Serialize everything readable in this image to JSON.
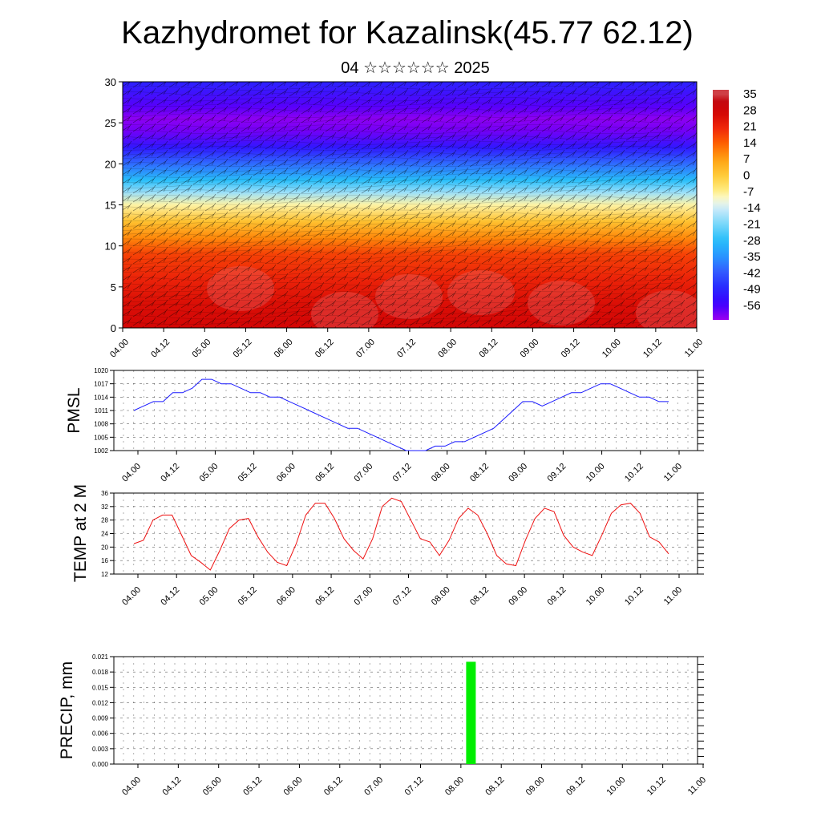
{
  "title": "Kazhydromet for Kazalinsk(45.77 62.12)",
  "subtitle": "04 ☆☆☆☆☆☆ 2025",
  "time_labels": [
    "04.00",
    "04.12",
    "05.00",
    "05.12",
    "06.00",
    "06.12",
    "07.00",
    "07.12",
    "08.00",
    "08.12",
    "09.00",
    "09.12",
    "10.00",
    "10.12",
    "11.00"
  ],
  "colors": {
    "pmsl_line": "#1a1aff",
    "temp_line": "#ee1111",
    "precip_bar": "#00ee00"
  },
  "chart_data": [
    {
      "type": "heatmap",
      "ylim": [
        0,
        30
      ],
      "yticks": [
        0,
        5,
        10,
        15,
        20,
        25,
        30
      ],
      "colorbar_labels": [
        "35",
        "28",
        "21",
        "14",
        "7",
        "0",
        "-7",
        "-14",
        "-21",
        "-28",
        "-35",
        "-42",
        "-49",
        "-56"
      ],
      "colorbar_range": [
        -63,
        38
      ],
      "profile": {
        "height": [
          0,
          3,
          6,
          9,
          11,
          13,
          15,
          16.5,
          18,
          20,
          22,
          24,
          25.5,
          27,
          30
        ],
        "value": [
          28,
          26,
          22,
          18,
          10,
          2,
          -8,
          -18,
          -28,
          -40,
          -52,
          -60,
          -62,
          -58,
          -50
        ]
      },
      "overlay": "wind barbs"
    },
    {
      "type": "line",
      "ylabel": "PMSL",
      "ylim": [
        1002,
        1020
      ],
      "yticks": [
        1002,
        1005,
        1008,
        1011,
        1014,
        1017,
        1020
      ],
      "values": [
        1011,
        1012,
        1013,
        1013,
        1015,
        1015,
        1016,
        1018,
        1018,
        1017,
        1017,
        1016,
        1015,
        1015,
        1014,
        1014,
        1013,
        1012,
        1011,
        1010,
        1009,
        1008,
        1007,
        1007,
        1006,
        1005,
        1004,
        1003,
        1002,
        1002,
        1002,
        1003,
        1003,
        1004,
        1004,
        1005,
        1006,
        1007,
        1009,
        1011,
        1013,
        1013,
        1012,
        1013,
        1014,
        1015,
        1015,
        1016,
        1017,
        1017,
        1016,
        1015,
        1014,
        1014,
        1013,
        1013
      ]
    },
    {
      "type": "line",
      "ylabel": "TEMP at 2 M",
      "ylim": [
        12,
        36
      ],
      "yticks": [
        12,
        16,
        20,
        24,
        28,
        32,
        36
      ],
      "values": [
        21,
        22,
        28,
        29.5,
        29.5,
        23.5,
        17.5,
        15.5,
        13.2,
        19,
        25.5,
        28,
        28.5,
        23,
        18.5,
        15.5,
        14.5,
        21,
        29.5,
        33,
        33,
        28.5,
        22.5,
        19,
        16.5,
        22.5,
        32,
        34.5,
        33.5,
        28,
        22.5,
        21.5,
        17.5,
        22,
        28.5,
        31.5,
        29.5,
        24,
        17.5,
        15,
        14.5,
        22,
        28.5,
        31.5,
        30.5,
        23.5,
        20,
        18.5,
        17.5,
        23.5,
        30,
        32.5,
        33,
        30,
        23,
        21.5,
        18
      ]
    },
    {
      "type": "bar",
      "ylabel": "PRECIP, mm",
      "ylim": [
        0,
        0.021
      ],
      "yticks": [
        "0.000",
        "0.003",
        "0.006",
        "0.009",
        "0.012",
        "0.015",
        "0.018",
        "0.021"
      ],
      "bars": [
        {
          "x_hours": 99,
          "value": 0.02
        }
      ]
    }
  ]
}
